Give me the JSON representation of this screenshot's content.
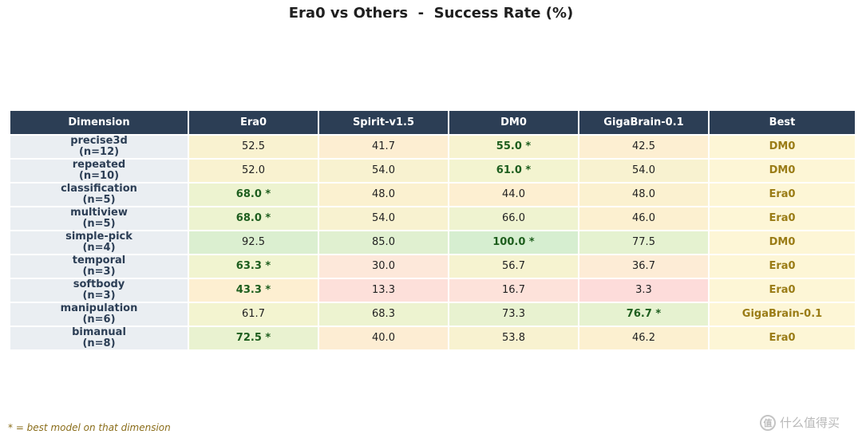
{
  "chart_data": {
    "type": "table",
    "title": "Era0 vs Others  -  Success Rate (%)",
    "columns": [
      "Dimension",
      "Era0",
      "Spirit-v1.5",
      "DM0",
      "GigaBrain-0.1",
      "Best"
    ],
    "models": [
      "Era0",
      "Spirit-v1.5",
      "DM0",
      "GigaBrain-0.1"
    ],
    "rows": [
      {
        "dimension": "precise3d",
        "n": "(n=12)",
        "values": [
          "52.5",
          "41.7",
          "55.0",
          "42.5"
        ],
        "best_index": 2,
        "best": "DM0"
      },
      {
        "dimension": "repeated",
        "n": "(n=10)",
        "values": [
          "52.0",
          "54.0",
          "61.0",
          "54.0"
        ],
        "best_index": 2,
        "best": "DM0"
      },
      {
        "dimension": "classification",
        "n": "(n=5)",
        "values": [
          "68.0",
          "48.0",
          "44.0",
          "48.0"
        ],
        "best_index": 0,
        "best": "Era0"
      },
      {
        "dimension": "multiview",
        "n": "(n=5)",
        "values": [
          "68.0",
          "54.0",
          "66.0",
          "46.0"
        ],
        "best_index": 0,
        "best": "Era0"
      },
      {
        "dimension": "simple-pick",
        "n": "(n=4)",
        "values": [
          "92.5",
          "85.0",
          "100.0",
          "77.5"
        ],
        "best_index": 2,
        "best": "DM0"
      },
      {
        "dimension": "temporal",
        "n": "(n=3)",
        "values": [
          "63.3",
          "30.0",
          "56.7",
          "36.7"
        ],
        "best_index": 0,
        "best": "Era0"
      },
      {
        "dimension": "softbody",
        "n": "(n=3)",
        "values": [
          "43.3",
          "13.3",
          "16.7",
          "3.3"
        ],
        "best_index": 0,
        "best": "Era0"
      },
      {
        "dimension": "manipulation",
        "n": "(n=6)",
        "values": [
          "61.7",
          "68.3",
          "73.3",
          "76.7"
        ],
        "best_index": 3,
        "best": "GigaBrain-0.1"
      },
      {
        "dimension": "bimanual",
        "n": "(n=8)",
        "values": [
          "72.5",
          "40.0",
          "53.8",
          "46.2"
        ],
        "best_index": 0,
        "best": "Era0"
      }
    ],
    "best_marker": "*",
    "footnote": "* = best model on that dimension"
  },
  "watermark": {
    "icon_text": "值",
    "text": "什么值得买"
  },
  "colors": {
    "header_bg": "#2c3e55",
    "dimension_bg": "#eaeef2",
    "best_bg": "#fdf6d6",
    "best_text": "#9a7c16",
    "best_value_text": "#1e5e1e"
  }
}
